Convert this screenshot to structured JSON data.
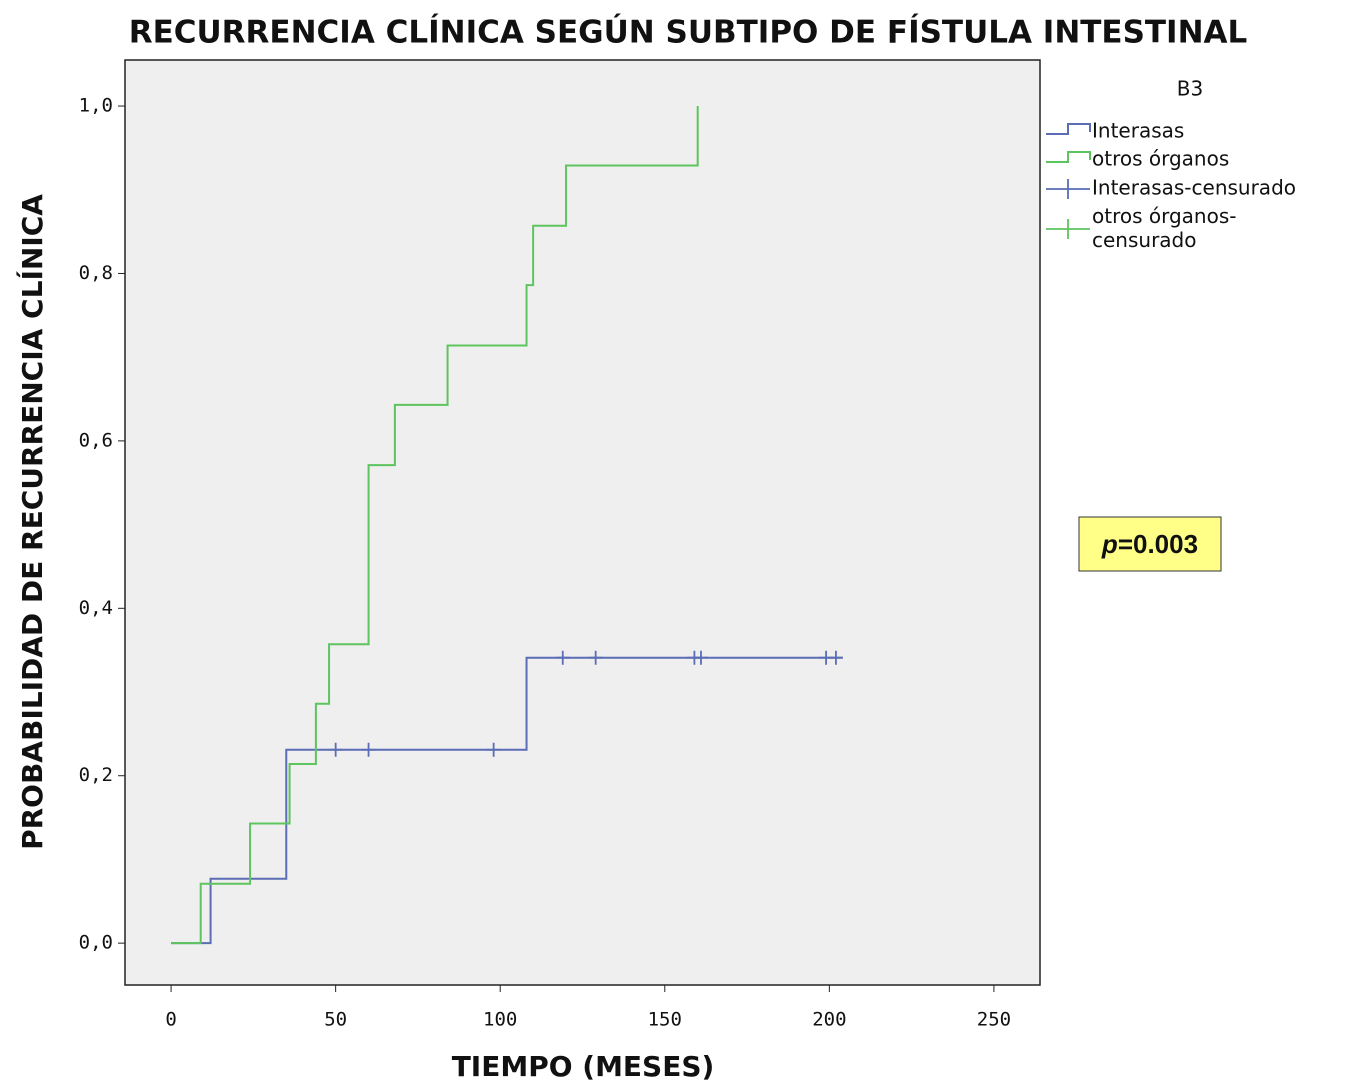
{
  "chart_data": {
    "type": "step",
    "title": "RECURRENCIA CLÍNICA SEGÚN SUBTIPO DE FÍSTULA INTESTINAL",
    "x_label": "TIEMPO (MESES)",
    "y_label": "PROBABILIDAD DE RECURRENCIA CLÍNICA",
    "legend_title": "B3",
    "annotation": {
      "italic": "p",
      "text": "=0.003"
    },
    "xlim": [
      -14,
      264
    ],
    "ylim": [
      -0.05,
      1.055
    ],
    "xticks": [
      0,
      50,
      100,
      150,
      200,
      250
    ],
    "yticks": [
      {
        "value": 0,
        "label": "0,0"
      },
      {
        "value": 0.2,
        "label": "0,2"
      },
      {
        "value": 0.4,
        "label": "0,4"
      },
      {
        "value": 0.6,
        "label": "0,6"
      },
      {
        "value": 0.8,
        "label": "0,8"
      },
      {
        "value": 1,
        "label": "1,0"
      }
    ],
    "series": [
      {
        "name": "Interasas",
        "kind": "step",
        "color": "#5a6db5",
        "x": [
          0,
          12,
          35,
          108,
          204
        ],
        "values": [
          0,
          0.077,
          0.231,
          0.341,
          0.341
        ]
      },
      {
        "name": "otros órganos",
        "kind": "step",
        "color": "#5ec45e",
        "x": [
          0,
          9,
          24,
          36,
          44,
          48,
          60,
          68,
          84,
          108,
          110,
          120,
          160
        ],
        "values": [
          0,
          0.071,
          0.143,
          0.214,
          0.286,
          0.357,
          0.571,
          0.643,
          0.714,
          0.786,
          0.857,
          0.929,
          1.0
        ]
      },
      {
        "name": "Interasas-censurado",
        "kind": "censor",
        "color": "#5a6db5",
        "x": [
          50,
          60,
          98,
          119,
          129,
          159,
          161,
          199,
          202
        ],
        "values": [
          0.231,
          0.231,
          0.231,
          0.341,
          0.341,
          0.341,
          0.341,
          0.341,
          0.341
        ]
      },
      {
        "name": "otros órganos-censurado",
        "kind": "censor",
        "color": "#5ec45e",
        "x": [],
        "values": []
      }
    ]
  }
}
